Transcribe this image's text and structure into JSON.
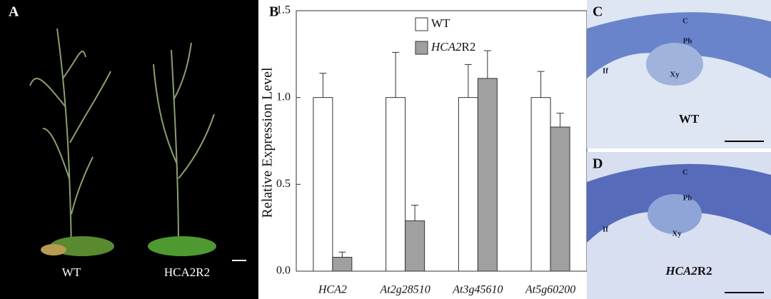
{
  "chart_data": {
    "type": "bar",
    "panel_label": "B",
    "ylabel": "Relative Expression Level",
    "categories": [
      "HCA2",
      "At2g28510",
      "At3g45610",
      "At5g60200"
    ],
    "series": [
      {
        "name": "WT",
        "color": "#ffffff",
        "values": [
          1.0,
          1.0,
          1.0,
          1.0
        ],
        "errors": [
          0.14,
          0.26,
          0.19,
          0.15
        ]
      },
      {
        "name": "HCA2R2",
        "color": "#a0a0a0",
        "values": [
          0.08,
          0.29,
          1.11,
          0.83
        ],
        "errors": [
          0.03,
          0.09,
          0.16,
          0.08
        ]
      }
    ],
    "ylim": [
      0,
      1.5
    ],
    "yticks": [
      {
        "value": 0,
        "label": "0.0"
      },
      0.5,
      {
        "value": 1,
        "label": "1.0"
      },
      1.5
    ]
  },
  "panels": {
    "a": {
      "label": "A",
      "captions": [
        "WT",
        "HCA2R2"
      ]
    },
    "c": {
      "label": "C",
      "tissues": [
        "C",
        "Ph",
        "If",
        "Xy"
      ],
      "caption": "WT"
    },
    "d": {
      "label": "D",
      "tissues": [
        "C",
        "Ph",
        "If",
        "Xy"
      ],
      "caption": "HCA2R2"
    }
  }
}
